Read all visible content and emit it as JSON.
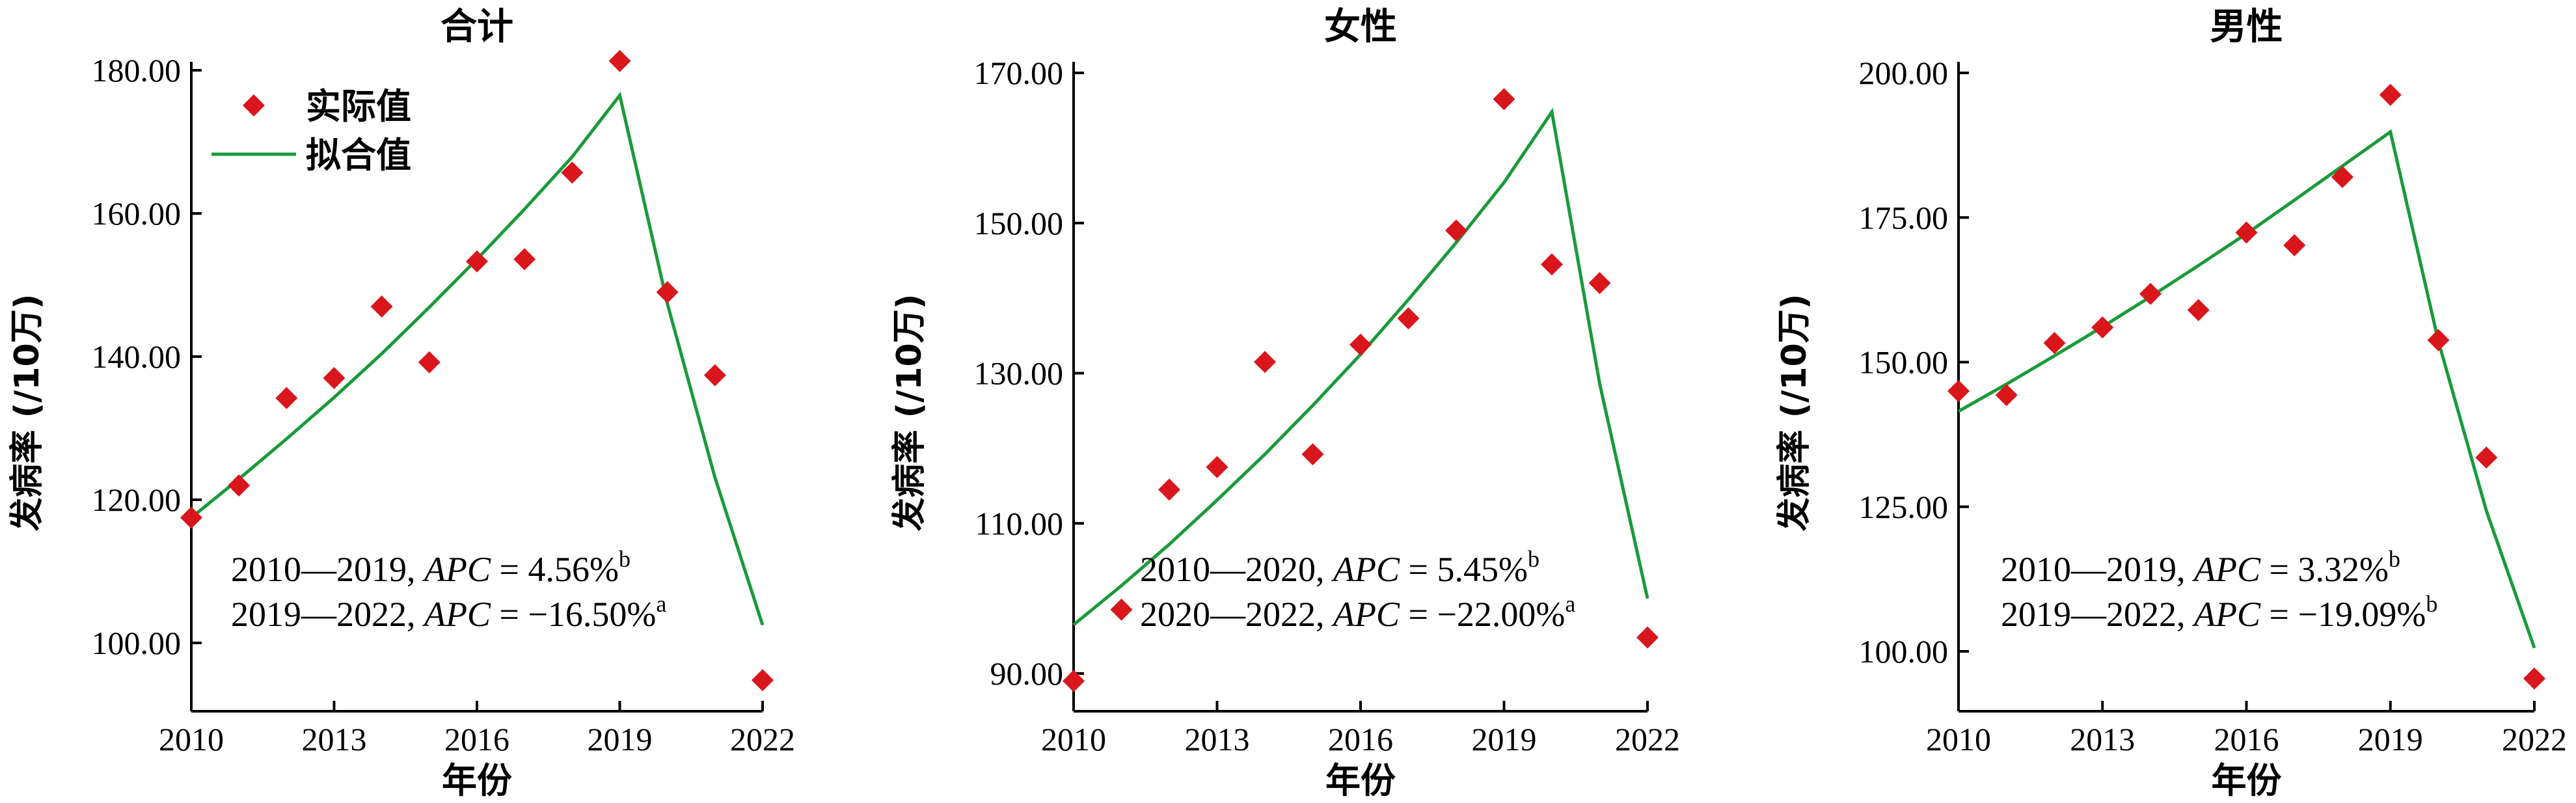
{
  "chart_data": [
    {
      "type": "scatter",
      "title": "合计",
      "xlabel": "年份",
      "ylabel": "发病率 (/10万)",
      "xlim": [
        2010,
        2022
      ],
      "xticks": [
        "2010",
        "2013",
        "2016",
        "2019",
        "2022"
      ],
      "ylim": [
        92,
        182
      ],
      "yticks": [
        "100.00",
        "120.00",
        "140.00",
        "160.00",
        "180.00"
      ],
      "legend": {
        "position": "top-left",
        "actual": "实际值",
        "fitted": "拟合值"
      },
      "series": [
        {
          "name": "实际值",
          "marker": "diamond",
          "color": "#d9161c",
          "x": [
            2010,
            2011,
            2012,
            2013,
            2014,
            2015,
            2016,
            2017,
            2018,
            2019,
            2020,
            2021,
            2022
          ],
          "y": [
            117.5,
            122.0,
            134.2,
            137.0,
            147.0,
            139.2,
            153.3,
            153.6,
            165.7,
            181.3,
            149.0,
            137.4,
            94.8
          ]
        },
        {
          "name": "拟合值",
          "line": true,
          "color": "#1a9a3a",
          "x": [
            2010,
            2011,
            2012,
            2013,
            2014,
            2015,
            2016,
            2017,
            2018,
            2019,
            2020,
            2021,
            2022
          ],
          "y": [
            117.5,
            122.9,
            128.5,
            134.3,
            140.4,
            146.9,
            153.6,
            160.6,
            167.9,
            176.5,
            147.4,
            123.1,
            102.5
          ]
        }
      ],
      "annotations": [
        {
          "period": "2010—2019, ",
          "label": "APC",
          "value": " = 4.56%",
          "sup": "b"
        },
        {
          "period": "2019—2022, ",
          "label": "APC",
          "value": " = −16.50%",
          "sup": "a"
        }
      ]
    },
    {
      "type": "scatter",
      "title": "女性",
      "xlabel": "年份",
      "ylabel": "发病率 (/10万)",
      "xlim": [
        2010,
        2022
      ],
      "xticks": [
        "2010",
        "2013",
        "2016",
        "2019",
        "2022"
      ],
      "ylim": [
        88,
        170
      ],
      "yticks": [
        "90.00",
        "110.00",
        "130.00",
        "150.00",
        "170.00"
      ],
      "series": [
        {
          "name": "实际值",
          "marker": "diamond",
          "color": "#d9161c",
          "x": [
            2010,
            2011,
            2012,
            2013,
            2014,
            2015,
            2016,
            2017,
            2018,
            2019,
            2020,
            2021,
            2022
          ],
          "y": [
            89.0,
            98.5,
            114.5,
            117.5,
            131.5,
            119.2,
            133.8,
            137.3,
            149.0,
            166.5,
            144.5,
            142.0,
            94.8
          ]
        },
        {
          "name": "拟合值",
          "line": true,
          "color": "#1a9a3a",
          "x": [
            2010,
            2011,
            2012,
            2013,
            2014,
            2015,
            2016,
            2017,
            2018,
            2019,
            2020,
            2021,
            2022
          ],
          "y": [
            96.5,
            101.7,
            107.2,
            113.1,
            119.2,
            125.7,
            132.5,
            139.8,
            147.4,
            155.4,
            164.8,
            128.6,
            100.0
          ]
        }
      ],
      "annotations": [
        {
          "period": "2010—2020, ",
          "label": "APC",
          "value": " = 5.45%",
          "sup": "b"
        },
        {
          "period": "2020—2022, ",
          "label": "APC",
          "value": " = −22.00%",
          "sup": "a"
        }
      ]
    },
    {
      "type": "scatter",
      "title": "男性",
      "xlabel": "年份",
      "ylabel": "发病率 (/10万)",
      "xlim": [
        2010,
        2022
      ],
      "xticks": [
        "2010",
        "2013",
        "2016",
        "2019",
        "2022"
      ],
      "ylim": [
        92,
        200
      ],
      "yticks": [
        "100.00",
        "125.00",
        "150.00",
        "175.00",
        "200.00"
      ],
      "series": [
        {
          "name": "实际值",
          "marker": "diamond",
          "color": "#d9161c",
          "x": [
            2010,
            2011,
            2012,
            2013,
            2014,
            2015,
            2016,
            2017,
            2018,
            2019,
            2020,
            2021,
            2022
          ],
          "y": [
            145.0,
            144.3,
            153.3,
            156.0,
            161.8,
            159.0,
            172.4,
            170.2,
            182.0,
            196.2,
            153.8,
            133.5,
            95.3
          ]
        },
        {
          "name": "拟合值",
          "line": true,
          "color": "#1a9a3a",
          "x": [
            2010,
            2011,
            2012,
            2013,
            2014,
            2015,
            2016,
            2017,
            2018,
            2019,
            2020,
            2021,
            2022
          ],
          "y": [
            141.5,
            146.2,
            151.1,
            156.1,
            161.3,
            166.7,
            172.2,
            178.0,
            183.9,
            189.8,
            153.6,
            124.3,
            100.6
          ]
        }
      ],
      "annotations": [
        {
          "period": "2010—2019, ",
          "label": "APC",
          "value": " = 3.32%",
          "sup": "b"
        },
        {
          "period": "2019—2022, ",
          "label": "APC",
          "value": " = −19.09%",
          "sup": "b"
        }
      ]
    }
  ]
}
